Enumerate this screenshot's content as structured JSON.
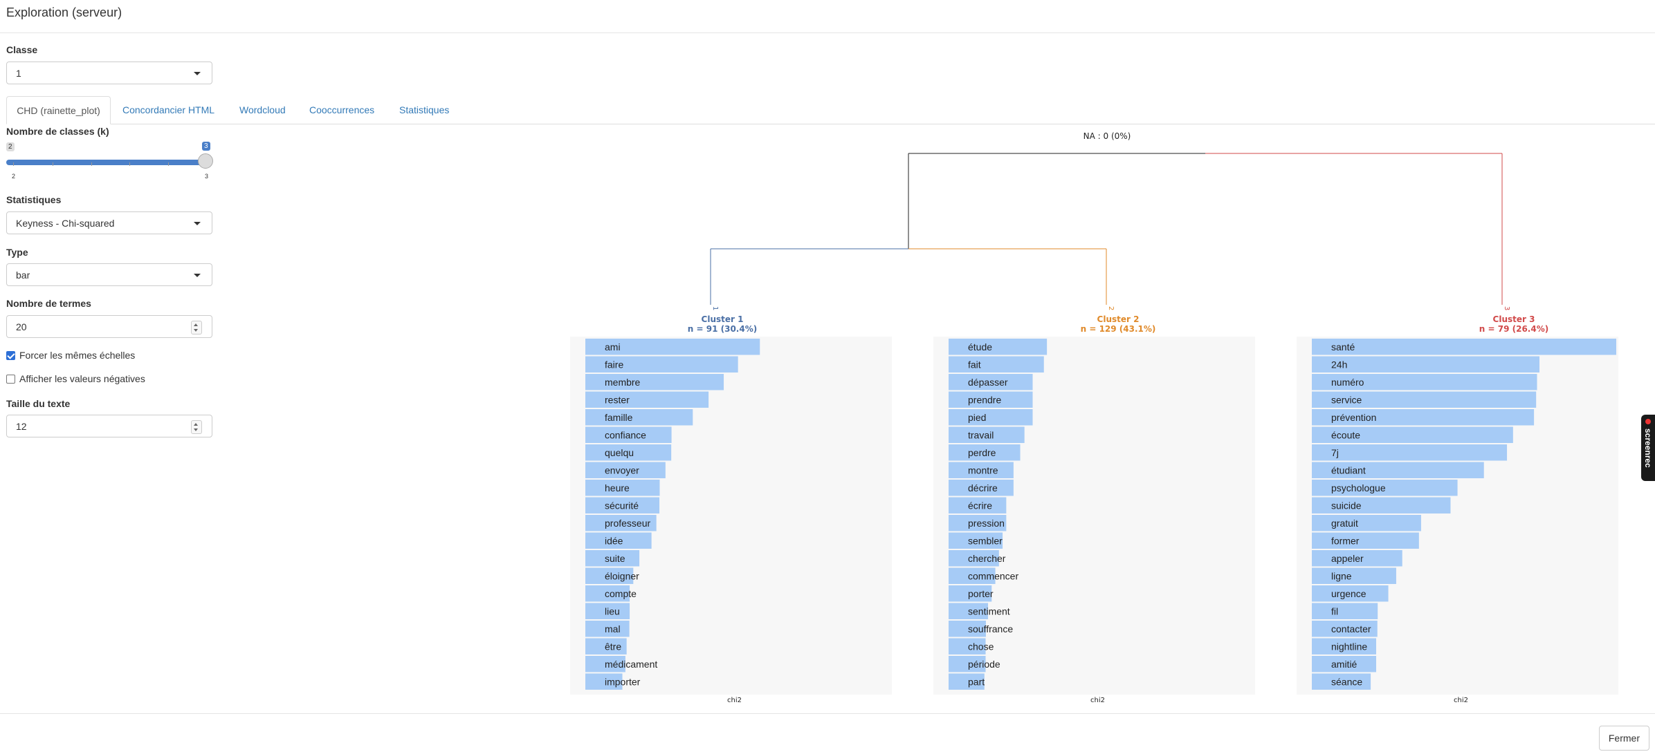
{
  "app": {
    "title": "Exploration (serveur)"
  },
  "sidebar": {
    "classe": {
      "label": "Classe",
      "value": "1"
    },
    "k": {
      "label": "Nombre de classes (k)",
      "min": "2",
      "max": "3",
      "value": "3",
      "ticks": [
        "2",
        "3"
      ]
    },
    "stats": {
      "label": "Statistiques",
      "value": "Keyness - Chi-squared"
    },
    "type": {
      "label": "Type",
      "value": "bar"
    },
    "nterms": {
      "label": "Nombre de termes",
      "value": "20"
    },
    "force_scales": {
      "label": "Forcer les mêmes échelles",
      "checked": true
    },
    "show_negative": {
      "label": "Afficher les valeurs négatives",
      "checked": false
    },
    "text_size": {
      "label": "Taille du texte",
      "value": "12"
    }
  },
  "tabs": [
    {
      "label": "CHD (rainette_plot)",
      "active": true
    },
    {
      "label": "Concordancier HTML",
      "active": false
    },
    {
      "label": "Wordcloud",
      "active": false
    },
    {
      "label": "Cooccurrences",
      "active": false
    },
    {
      "label": "Statistiques",
      "active": false
    }
  ],
  "footer": {
    "close_label": "Fermer"
  },
  "badge": {
    "text": "screenrec"
  },
  "chart_data": {
    "type": "bar",
    "na_label": "NA : 0 (0%)",
    "dendrogram": {
      "leaves": [
        "1",
        "2",
        "3"
      ],
      "colors": [
        "#4a6fa5",
        "#e08a2a",
        "#d14a4a"
      ]
    },
    "xlabel": "chi2",
    "panels": [
      {
        "title": "Cluster 1",
        "subtitle": "n = 91 (30.4%)",
        "color": "#4a6fa5",
        "terms": [
          "ami",
          "faire",
          "membre",
          "rester",
          "famille",
          "confiance",
          "quelqu",
          "envoyer",
          "heure",
          "sécurité",
          "professeur",
          "idée",
          "suite",
          "éloigner",
          "compte",
          "lieu",
          "mal",
          "être",
          "médicament",
          "importer"
        ],
        "values": [
          57.5,
          50.3,
          45.6,
          40.6,
          35.4,
          28.4,
          28.3,
          26.4,
          24.5,
          24.4,
          23.4,
          21.8,
          17.8,
          15.8,
          14.6,
          14.6,
          14.5,
          13.6,
          13.2,
          12.2
        ]
      },
      {
        "title": "Cluster 2",
        "subtitle": "n = 129 (43.1%)",
        "color": "#e08a2a",
        "terms": [
          "étude",
          "fait",
          "dépasser",
          "prendre",
          "pied",
          "travail",
          "perdre",
          "montre",
          "décrire",
          "écrire",
          "pression",
          "sembler",
          "chercher",
          "commencer",
          "porter",
          "sentiment",
          "souffrance",
          "chose",
          "période",
          "part"
        ],
        "values": [
          32.4,
          31.4,
          27.7,
          27.7,
          27.7,
          25.0,
          23.6,
          21.4,
          21.4,
          19.0,
          19.0,
          17.8,
          16.6,
          15.4,
          14.2,
          13.0,
          12.3,
          12.2,
          12.2,
          11.8
        ]
      },
      {
        "title": "Cluster 3",
        "subtitle": "n = 79 (26.4%)",
        "color": "#d14a4a",
        "terms": [
          "santé",
          "24h",
          "numéro",
          "service",
          "prévention",
          "écoute",
          "7j",
          "étudiant",
          "psychologue",
          "suicide",
          "gratuit",
          "former",
          "appeler",
          "ligne",
          "urgence",
          "fil",
          "contacter",
          "nightline",
          "amitié",
          "séance"
        ],
        "values": [
          100.3,
          75.0,
          74.2,
          73.9,
          73.2,
          66.3,
          64.3,
          56.7,
          48.0,
          45.7,
          36.0,
          35.3,
          29.8,
          27.8,
          25.2,
          21.7,
          21.6,
          21.2,
          21.2,
          19.4
        ]
      }
    ]
  }
}
